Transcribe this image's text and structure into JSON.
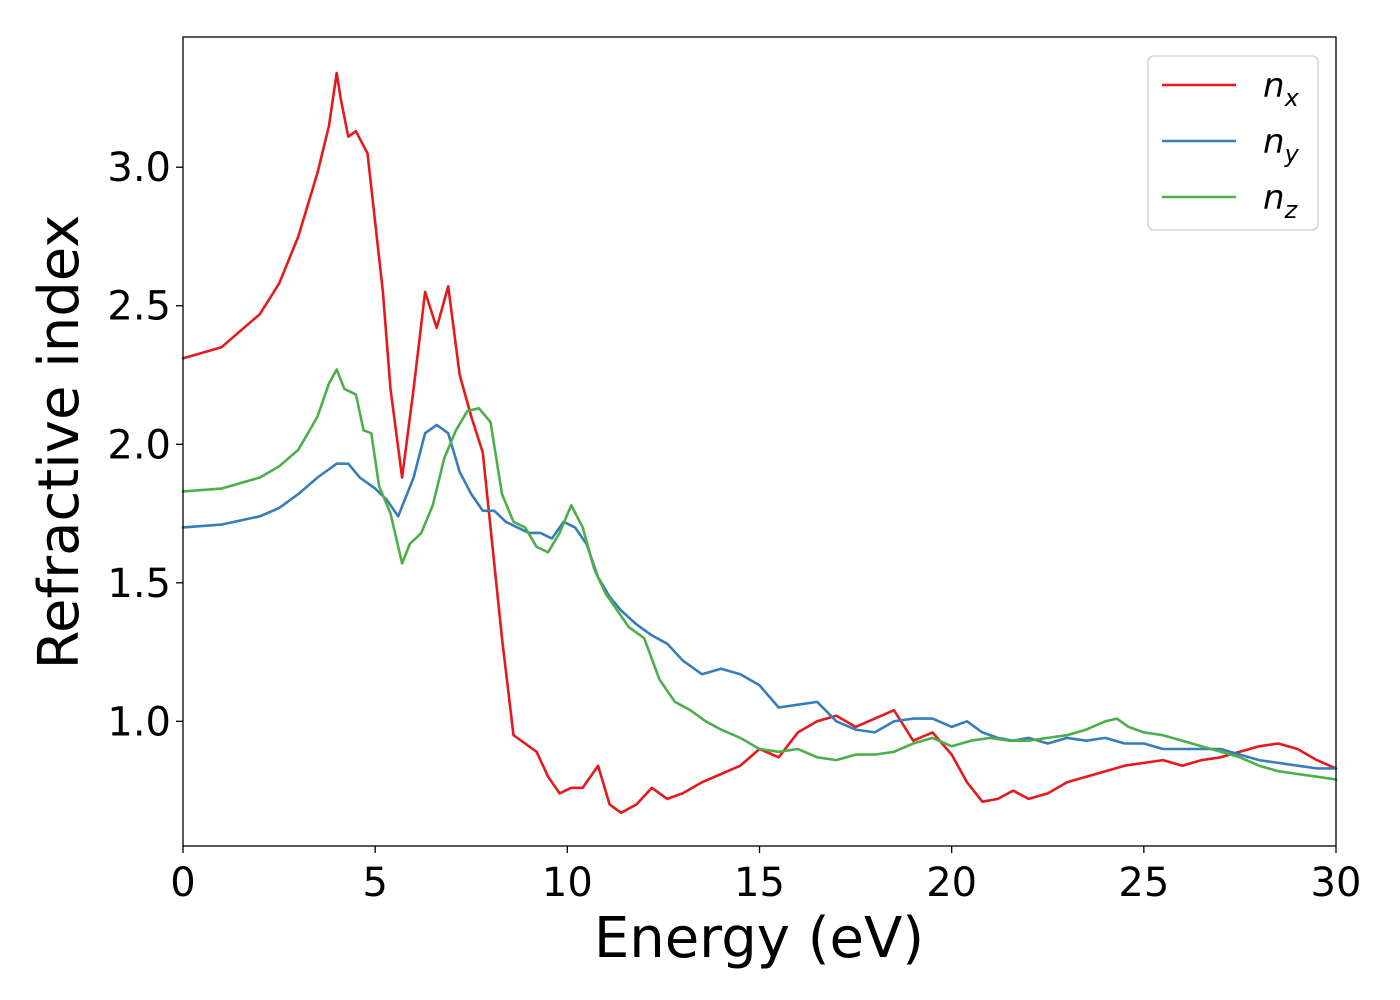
{
  "chart_data": {
    "type": "line",
    "xlabel": "Energy (eV)",
    "ylabel": "Refractive index",
    "xlim": [
      0,
      30
    ],
    "ylim": [
      0.55,
      3.47
    ],
    "xticks": [
      0,
      5,
      10,
      15,
      20,
      25,
      30
    ],
    "xtick_labels": [
      "0",
      "5",
      "10",
      "15",
      "20",
      "25",
      "30"
    ],
    "yticks": [
      1.0,
      1.5,
      2.0,
      2.5,
      3.0
    ],
    "ytick_labels": [
      "1.0",
      "1.5",
      "2.0",
      "2.5",
      "3.0"
    ],
    "grid": false,
    "legend_position": "top-right",
    "series": [
      {
        "name": "n",
        "subscript": "x",
        "color": "#e41a1c",
        "x": [
          0,
          1,
          2,
          2.5,
          3,
          3.5,
          3.8,
          4.0,
          4.1,
          4.3,
          4.5,
          4.8,
          5.0,
          5.2,
          5.4,
          5.7,
          6.0,
          6.3,
          6.6,
          6.9,
          7.2,
          7.5,
          7.8,
          8.0,
          8.3,
          8.6,
          8.9,
          9.2,
          9.5,
          9.8,
          10.1,
          10.4,
          10.8,
          11.1,
          11.4,
          11.8,
          12.2,
          12.6,
          13.0,
          13.5,
          14.0,
          14.5,
          15.0,
          15.5,
          16.0,
          16.5,
          17.0,
          17.5,
          18.0,
          18.5,
          19.0,
          19.5,
          20.0,
          20.4,
          20.8,
          21.2,
          21.6,
          22.0,
          22.5,
          23.0,
          23.5,
          24.0,
          24.5,
          25.0,
          25.5,
          26.0,
          26.5,
          27.0,
          27.5,
          28.0,
          28.5,
          29.0,
          29.5,
          30.0
        ],
        "values": [
          2.31,
          2.35,
          2.47,
          2.58,
          2.75,
          2.98,
          3.15,
          3.34,
          3.25,
          3.11,
          3.13,
          3.05,
          2.8,
          2.55,
          2.2,
          1.88,
          2.2,
          2.55,
          2.42,
          2.57,
          2.25,
          2.1,
          1.97,
          1.7,
          1.3,
          0.95,
          0.92,
          0.89,
          0.8,
          0.74,
          0.76,
          0.76,
          0.84,
          0.7,
          0.67,
          0.7,
          0.76,
          0.72,
          0.74,
          0.78,
          0.81,
          0.84,
          0.9,
          0.87,
          0.96,
          1.0,
          1.02,
          0.98,
          1.01,
          1.04,
          0.93,
          0.96,
          0.88,
          0.78,
          0.71,
          0.72,
          0.75,
          0.72,
          0.74,
          0.78,
          0.8,
          0.82,
          0.84,
          0.85,
          0.86,
          0.84,
          0.86,
          0.87,
          0.89,
          0.91,
          0.92,
          0.9,
          0.86,
          0.83
        ]
      },
      {
        "name": "n",
        "subscript": "y",
        "color": "#377eb8",
        "x": [
          0,
          1,
          2,
          2.5,
          3,
          3.5,
          4.0,
          4.3,
          4.6,
          5.0,
          5.3,
          5.6,
          6.0,
          6.3,
          6.6,
          6.9,
          7.2,
          7.5,
          7.8,
          8.1,
          8.4,
          8.7,
          9.0,
          9.3,
          9.6,
          9.9,
          10.2,
          10.5,
          10.8,
          11.1,
          11.4,
          11.8,
          12.2,
          12.6,
          13.0,
          13.5,
          14.0,
          14.5,
          15.0,
          15.5,
          16.0,
          16.5,
          17.0,
          17.5,
          18.0,
          18.5,
          19.0,
          19.5,
          20.0,
          20.4,
          20.8,
          21.2,
          21.6,
          22.0,
          22.5,
          23.0,
          23.5,
          24.0,
          24.5,
          25.0,
          25.5,
          26.0,
          26.5,
          27.0,
          27.5,
          28.0,
          28.5,
          29.0,
          29.5,
          30.0
        ],
        "values": [
          1.7,
          1.71,
          1.74,
          1.77,
          1.82,
          1.88,
          1.93,
          1.93,
          1.88,
          1.84,
          1.8,
          1.74,
          1.88,
          2.04,
          2.07,
          2.04,
          1.9,
          1.82,
          1.76,
          1.76,
          1.72,
          1.7,
          1.68,
          1.68,
          1.66,
          1.72,
          1.7,
          1.64,
          1.52,
          1.45,
          1.4,
          1.35,
          1.31,
          1.28,
          1.22,
          1.17,
          1.19,
          1.17,
          1.13,
          1.05,
          1.06,
          1.07,
          1.0,
          0.97,
          0.96,
          1.0,
          1.01,
          1.01,
          0.98,
          1.0,
          0.96,
          0.94,
          0.93,
          0.94,
          0.92,
          0.94,
          0.93,
          0.94,
          0.92,
          0.92,
          0.9,
          0.9,
          0.9,
          0.9,
          0.88,
          0.86,
          0.85,
          0.84,
          0.83,
          0.83
        ]
      },
      {
        "name": "n",
        "subscript": "z",
        "color": "#4daf4a",
        "x": [
          0,
          1,
          2,
          2.5,
          3,
          3.5,
          3.8,
          4.0,
          4.2,
          4.5,
          4.7,
          4.9,
          5.1,
          5.4,
          5.7,
          5.9,
          6.2,
          6.5,
          6.8,
          7.1,
          7.4,
          7.7,
          8.0,
          8.3,
          8.6,
          8.9,
          9.2,
          9.5,
          9.8,
          10.1,
          10.4,
          10.7,
          11.0,
          11.3,
          11.6,
          12.0,
          12.4,
          12.8,
          13.2,
          13.6,
          14.0,
          14.5,
          15.0,
          15.5,
          16.0,
          16.5,
          17.0,
          17.5,
          18.0,
          18.5,
          19.0,
          19.5,
          20.0,
          20.5,
          21.0,
          21.5,
          22.0,
          22.5,
          23.0,
          23.5,
          24.0,
          24.3,
          24.6,
          25.0,
          25.5,
          26.0,
          26.5,
          27.0,
          27.5,
          28.0,
          28.5,
          29.0,
          29.5,
          30.0
        ],
        "values": [
          1.83,
          1.84,
          1.88,
          1.92,
          1.98,
          2.1,
          2.22,
          2.27,
          2.2,
          2.18,
          2.05,
          2.04,
          1.85,
          1.75,
          1.57,
          1.64,
          1.68,
          1.78,
          1.95,
          2.05,
          2.12,
          2.13,
          2.08,
          1.82,
          1.72,
          1.7,
          1.63,
          1.61,
          1.68,
          1.78,
          1.7,
          1.55,
          1.46,
          1.4,
          1.34,
          1.3,
          1.15,
          1.07,
          1.04,
          1.0,
          0.97,
          0.94,
          0.9,
          0.89,
          0.9,
          0.87,
          0.86,
          0.88,
          0.88,
          0.89,
          0.92,
          0.94,
          0.91,
          0.93,
          0.94,
          0.93,
          0.93,
          0.94,
          0.95,
          0.97,
          1.0,
          1.01,
          0.98,
          0.96,
          0.95,
          0.93,
          0.91,
          0.89,
          0.87,
          0.84,
          0.82,
          0.81,
          0.8,
          0.79
        ]
      }
    ]
  }
}
